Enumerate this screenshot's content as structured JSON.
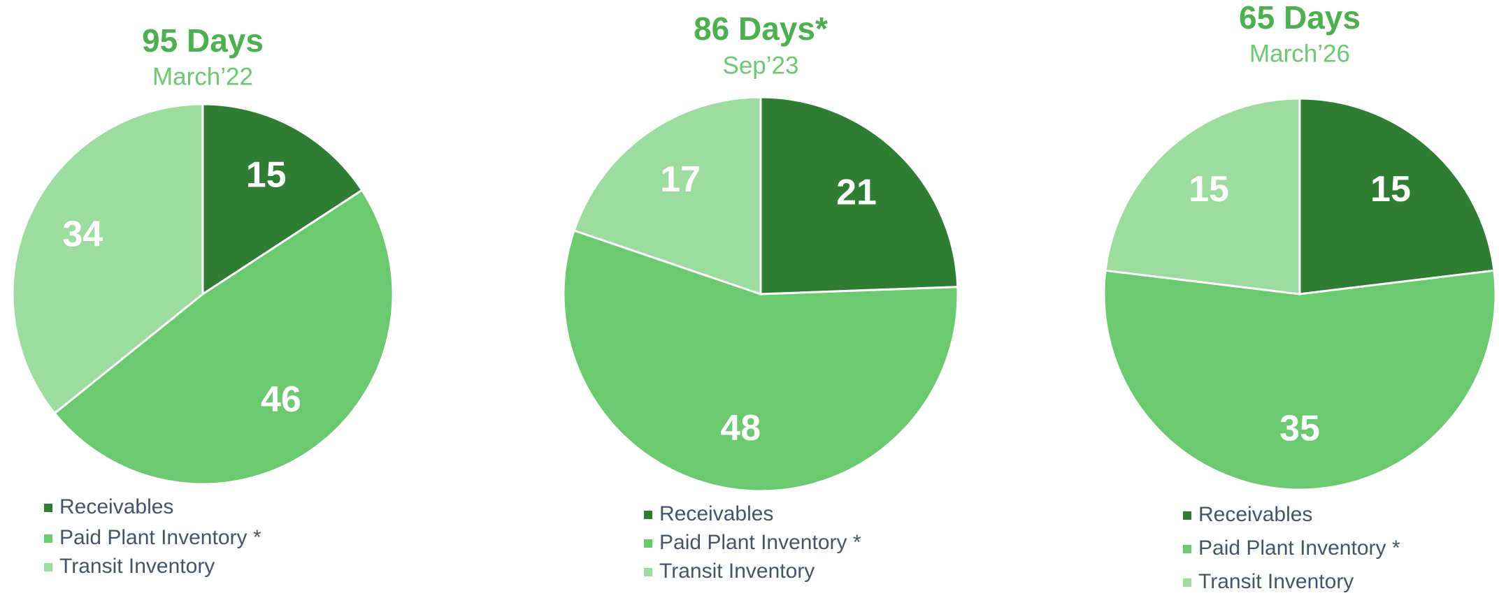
{
  "chart_data": [
    {
      "type": "pie",
      "title": "95 Days",
      "subtitle": "March’22",
      "labels": [
        "Receivables",
        "Paid Plant Inventory *",
        "Transit Inventory"
      ],
      "values": [
        15,
        46,
        34
      ],
      "colors": [
        "#2e7d32",
        "#6bc96f",
        "#9cdc9e"
      ]
    },
    {
      "type": "pie",
      "title": "86 Days*",
      "subtitle": "Sep’23",
      "labels": [
        "Receivables",
        "Paid Plant Inventory *",
        "Transit Inventory"
      ],
      "values": [
        21,
        48,
        17
      ],
      "colors": [
        "#2e7d32",
        "#6bc96f",
        "#9cdc9e"
      ]
    },
    {
      "type": "pie",
      "title": "65 Days",
      "subtitle": "March’26",
      "labels": [
        "Receivables",
        "Paid Plant Inventory *",
        "Transit Inventory"
      ],
      "values": [
        15,
        35,
        15
      ],
      "colors": [
        "#2e7d32",
        "#6bc96f",
        "#9cdc9e"
      ]
    }
  ]
}
